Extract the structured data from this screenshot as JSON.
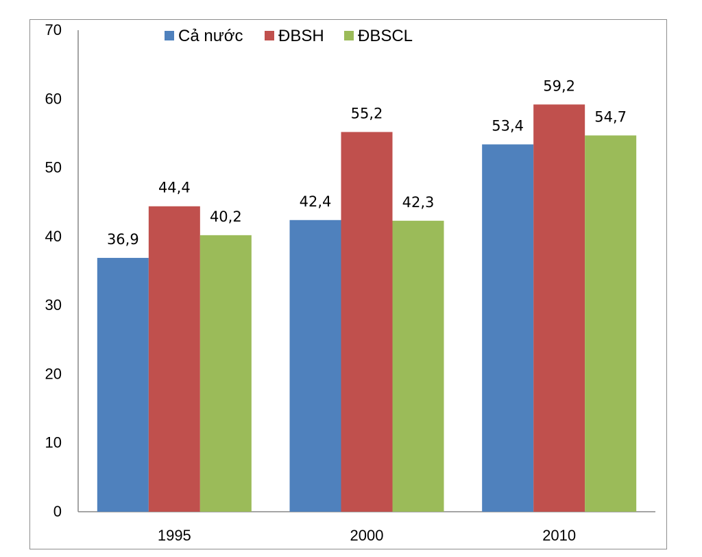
{
  "chart_data": {
    "type": "bar",
    "categories": [
      "1995",
      "2000",
      "2010"
    ],
    "series": [
      {
        "name": "Cả nước",
        "color": "#4F81BD",
        "values": [
          36.9,
          42.4,
          53.4
        ],
        "labels": [
          "36,9",
          "42,4",
          "53,4"
        ]
      },
      {
        "name": "ĐBSH",
        "color": "#C0504D",
        "values": [
          44.4,
          55.2,
          59.2
        ],
        "labels": [
          "44,4",
          "55,2",
          "59,2"
        ]
      },
      {
        "name": "ĐBSCL",
        "color": "#9BBB59",
        "values": [
          40.2,
          42.3,
          54.7
        ],
        "labels": [
          "40,2",
          "42,3",
          "54,7"
        ]
      }
    ],
    "yticks": [
      "0",
      "10",
      "20",
      "30",
      "40",
      "50",
      "60",
      "70"
    ],
    "ylim": [
      0,
      70
    ],
    "title": "",
    "xlabel": "",
    "ylabel": "",
    "grid": false,
    "legend_position": "top"
  }
}
